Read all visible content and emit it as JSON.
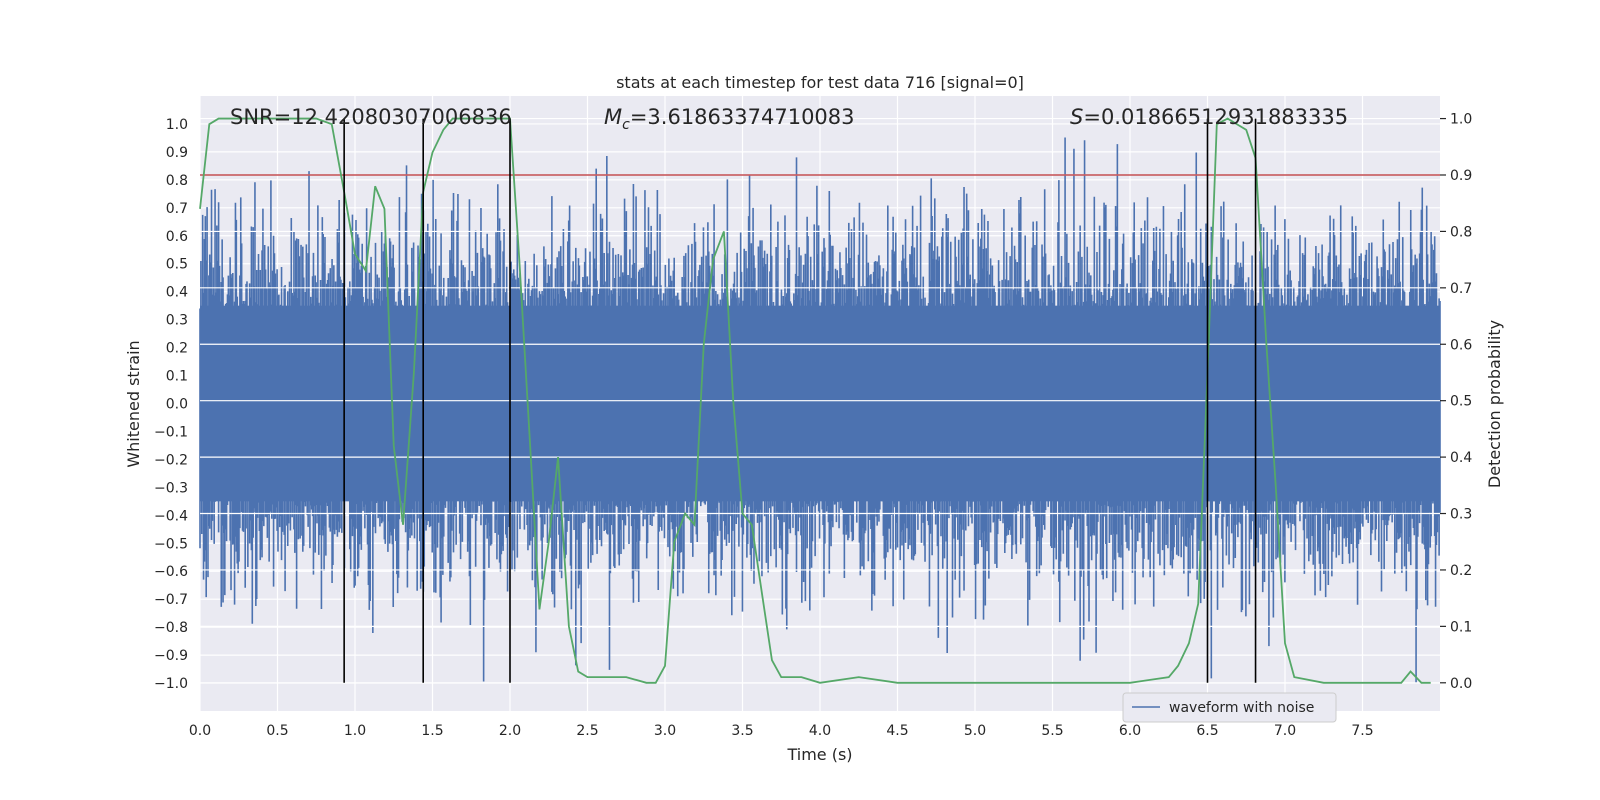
{
  "chart_data": {
    "type": "line",
    "title": "stats at each timestep for test data 716 [signal=0]",
    "xlabel": "Time (s)",
    "ylabel": "Whitened strain",
    "y2label": "Detection probability",
    "xlim": [
      0.0,
      8.0
    ],
    "ylim": [
      -1.1,
      1.1
    ],
    "y2lim": [
      -0.05,
      1.04
    ],
    "x_ticks": [
      "0.0",
      "0.5",
      "1.0",
      "1.5",
      "2.0",
      "2.5",
      "3.0",
      "3.5",
      "4.0",
      "4.5",
      "5.0",
      "5.5",
      "6.0",
      "6.5",
      "7.0",
      "7.5"
    ],
    "y_ticks": [
      "1.0",
      "0.9",
      "0.8",
      "0.7",
      "0.6",
      "0.5",
      "0.4",
      "0.3",
      "0.2",
      "0.1",
      "0.0",
      "−0.1",
      "−0.2",
      "−0.3",
      "−0.4",
      "−0.5",
      "−0.6",
      "−0.7",
      "−0.8",
      "−0.9",
      "−1.0"
    ],
    "y2_ticks": [
      "1.0",
      "0.9",
      "0.8",
      "0.7",
      "0.6",
      "0.5",
      "0.4",
      "0.3",
      "0.2",
      "0.1",
      "0.0"
    ],
    "annotations": {
      "snr": "SNR=12.42080307006836",
      "mc_symbol": "M",
      "mc_sub": "c",
      "mc_value": "=3.61863374710083",
      "s_symbol": "S",
      "s_value": "=0.01866512931883335"
    },
    "threshold": {
      "value": 0.9,
      "axis": "detection probability",
      "color": "#c44e52"
    },
    "vertical_lines": [
      0.93,
      1.44,
      2.0,
      6.5,
      6.81
    ],
    "legend": {
      "label": "waveform with noise",
      "position": "lower-right"
    },
    "series": [
      {
        "name": "waveform with noise",
        "axis": "left",
        "color": "#4c72b0",
        "kind": "noise",
        "mean_amplitude": 0.55,
        "peak_amplitude": 1.0
      },
      {
        "name": "detection probability",
        "axis": "right",
        "color": "#55a868",
        "x": [
          0.0,
          0.06,
          0.12,
          0.25,
          0.5,
          0.75,
          0.85,
          0.93,
          1.0,
          1.07,
          1.13,
          1.19,
          1.25,
          1.31,
          1.38,
          1.44,
          1.5,
          1.57,
          1.63,
          1.75,
          1.88,
          2.0,
          2.06,
          2.13,
          2.19,
          2.25,
          2.31,
          2.38,
          2.44,
          2.5,
          2.56,
          2.63,
          2.75,
          2.88,
          2.94,
          3.0,
          3.06,
          3.13,
          3.19,
          3.25,
          3.31,
          3.38,
          3.44,
          3.5,
          3.56,
          3.63,
          3.69,
          3.75,
          3.88,
          4.0,
          4.25,
          4.5,
          4.75,
          5.0,
          5.5,
          6.0,
          6.25,
          6.31,
          6.38,
          6.44,
          6.5,
          6.56,
          6.63,
          6.69,
          6.75,
          6.81,
          6.88,
          6.94,
          7.0,
          7.06,
          7.25,
          7.5,
          7.75,
          7.81,
          7.88,
          7.94
        ],
        "values": [
          0.84,
          0.99,
          1.0,
          1.0,
          1.0,
          1.0,
          0.99,
          0.87,
          0.76,
          0.73,
          0.88,
          0.84,
          0.42,
          0.28,
          0.55,
          0.87,
          0.94,
          0.98,
          1.0,
          1.0,
          1.0,
          1.0,
          0.75,
          0.42,
          0.13,
          0.25,
          0.4,
          0.1,
          0.02,
          0.01,
          0.01,
          0.01,
          0.01,
          0.0,
          0.0,
          0.03,
          0.25,
          0.3,
          0.28,
          0.6,
          0.75,
          0.8,
          0.5,
          0.3,
          0.28,
          0.15,
          0.04,
          0.01,
          0.01,
          0.0,
          0.01,
          0.0,
          0.0,
          0.0,
          0.0,
          0.0,
          0.01,
          0.03,
          0.07,
          0.14,
          0.55,
          0.99,
          1.0,
          0.99,
          0.98,
          0.93,
          0.6,
          0.35,
          0.07,
          0.01,
          0.0,
          0.0,
          0.0,
          0.02,
          0.0,
          0.0
        ]
      }
    ]
  }
}
